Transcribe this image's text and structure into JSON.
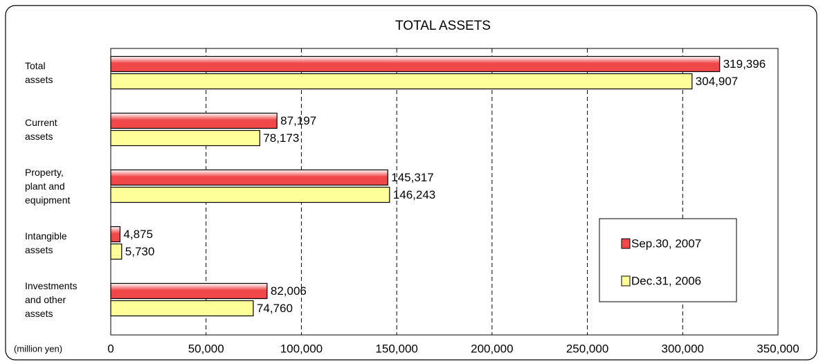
{
  "chart_data": {
    "type": "bar",
    "orientation": "horizontal",
    "title": "TOTAL ASSETS",
    "categories": [
      "Total\nassets",
      "Current\nassets",
      "Property,\nplant and\nequipment",
      "Intangible\nassets",
      "Investments\nand other\nassets"
    ],
    "series": [
      {
        "name": "Sep.30, 2007",
        "color": "#f04848",
        "values": [
          319396,
          87197,
          145317,
          4875,
          82006
        ],
        "value_labels": [
          "319,396",
          "87,197",
          "145,317",
          "4,875",
          "82,006"
        ]
      },
      {
        "name": "Dec.31, 2006",
        "color": "#ffff99",
        "values": [
          304907,
          78173,
          146243,
          5730,
          74760
        ],
        "value_labels": [
          "304,907",
          "78,173",
          "146,243",
          "5,730",
          "74,760"
        ]
      }
    ],
    "xlabel": "(million yen)",
    "xlim": [
      0,
      350000
    ],
    "xticks": [
      0,
      {
        "value": 50000,
        "label": "50,000"
      },
      {
        "value": 100000,
        "label": "100,000"
      },
      {
        "value": 150000,
        "label": "150,000"
      },
      {
        "value": 200000,
        "label": "200,000"
      },
      {
        "value": 250000,
        "label": "250,000"
      },
      {
        "value": 300000,
        "label": "300,000"
      },
      {
        "value": 350000,
        "label": "350,000"
      }
    ],
    "grid": true,
    "legend": "right"
  }
}
